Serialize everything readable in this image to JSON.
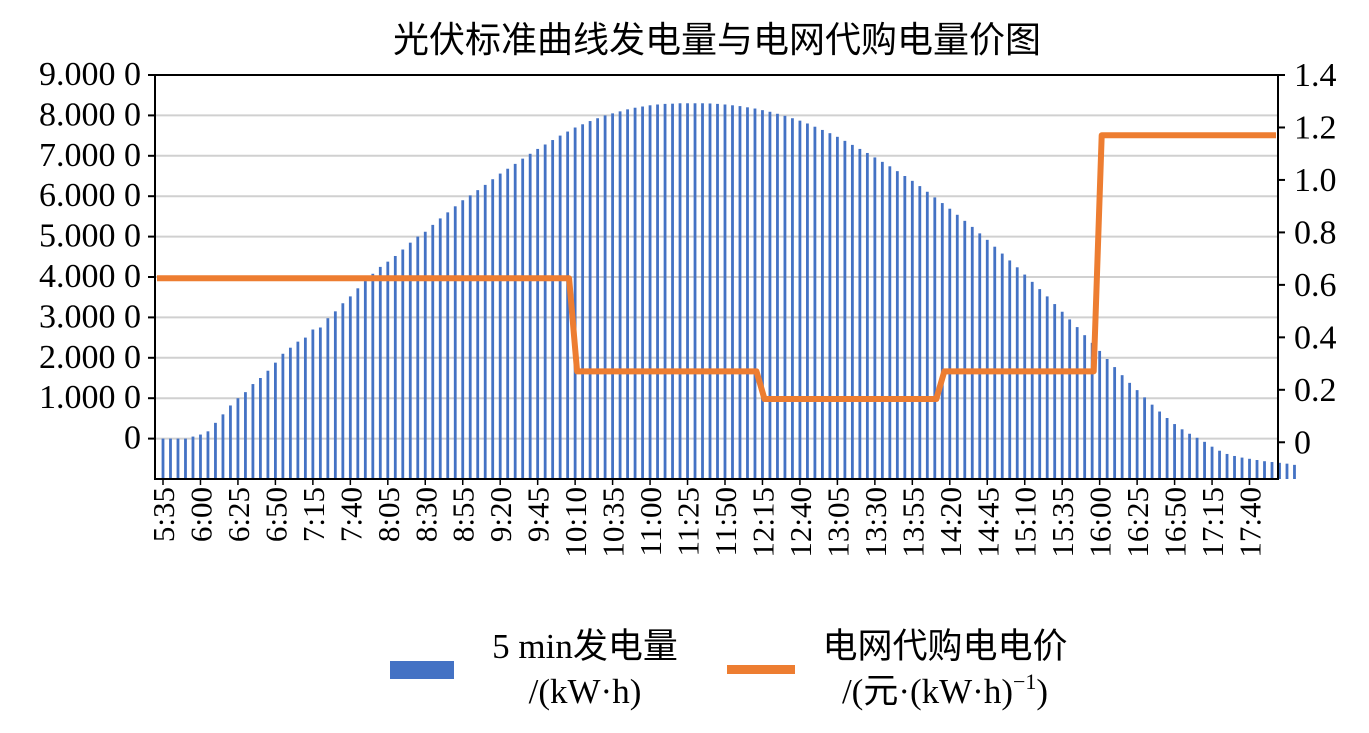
{
  "chart_data": {
    "type": "bar+line",
    "title": "光伏标准曲线发电量与电网代购电量价图",
    "y_left": {
      "min": -1000,
      "max": 9000,
      "tick_values": [
        0,
        1000,
        2000,
        3000,
        4000,
        5000,
        6000,
        7000,
        8000,
        9000
      ],
      "tick_labels": [
        "0",
        "1.000 0",
        "2.000 0",
        "3.000 0",
        "4.000 0",
        "5.000 0",
        "6.000 0",
        "7.000 0",
        "8.000 0",
        "9.000 0"
      ]
    },
    "y_right": {
      "min": -0.14,
      "max": 1.4,
      "tick_values": [
        0,
        0.2,
        0.4,
        0.6,
        0.8,
        1.0,
        1.2,
        1.4
      ],
      "tick_labels": [
        "0",
        "0.2",
        "0.4",
        "0.6",
        "0.8",
        "1.0",
        "1.2",
        "1.4"
      ]
    },
    "x_tick_labels": [
      "5:35",
      "6:00",
      "6:25",
      "6:50",
      "7:15",
      "7:40",
      "8:05",
      "8:30",
      "8:55",
      "9:20",
      "9:45",
      "10:10",
      "10:35",
      "11:00",
      "11:25",
      "11:50",
      "12:15",
      "12:40",
      "13:05",
      "13:30",
      "13:55",
      "14:20",
      "14:45",
      "15:10",
      "15:35",
      "16:00",
      "16:25",
      "16:50",
      "17:15",
      "17:40"
    ],
    "x_start": "5:35",
    "x_end": "17:55",
    "series": [
      {
        "name": "5 min发电量",
        "name_line2": "/(kW·h)",
        "type": "bar",
        "color": "#4472C4",
        "sampling_minutes": 5,
        "values": [
          0,
          0,
          0,
          0,
          50,
          100,
          180,
          390,
          600,
          820,
          1000,
          1150,
          1350,
          1500,
          1680,
          1880,
          2100,
          2250,
          2400,
          2500,
          2700,
          2750,
          2980,
          3150,
          3350,
          3520,
          3720,
          3900,
          4080,
          4250,
          4380,
          4520,
          4680,
          4850,
          5000,
          5120,
          5290,
          5450,
          5600,
          5750,
          5900,
          6020,
          6150,
          6280,
          6420,
          6560,
          6680,
          6800,
          6930,
          7050,
          7170,
          7280,
          7390,
          7500,
          7600,
          7700,
          7780,
          7860,
          7930,
          8000,
          8050,
          8100,
          8150,
          8190,
          8220,
          8250,
          8270,
          8285,
          8290,
          8300,
          8300,
          8300,
          8300,
          8295,
          8285,
          8270,
          8250,
          8230,
          8200,
          8170,
          8130,
          8090,
          8040,
          7990,
          7930,
          7870,
          7800,
          7720,
          7640,
          7560,
          7470,
          7370,
          7270,
          7170,
          7070,
          6960,
          6850,
          6740,
          6620,
          6500,
          6380,
          6250,
          6110,
          5970,
          5830,
          5690,
          5540,
          5390,
          5240,
          5080,
          4920,
          4750,
          4580,
          4410,
          4240,
          4060,
          3880,
          3700,
          3520,
          3330,
          3140,
          2950,
          2760,
          2560,
          2370,
          2170,
          1970,
          1770,
          1570,
          1380,
          1200,
          1020,
          840,
          670,
          510,
          360,
          230,
          120,
          20,
          -80,
          -200,
          -300,
          -380,
          -430,
          -470,
          -500,
          -530,
          -560,
          -580,
          -600,
          -620,
          -650
        ]
      },
      {
        "name": "电网代购电电价",
        "name_line2_prefix": "/(元·(kW·h)",
        "name_line2_sup": "−1",
        "name_line2_suffix": ")",
        "type": "line",
        "color": "#ED7D31",
        "steps": [
          {
            "from": "5:35",
            "value": 0.625
          },
          {
            "from": "10:10",
            "value": 0.27
          },
          {
            "from": "12:15",
            "value": 0.165
          },
          {
            "from": "14:15",
            "value": 0.27
          },
          {
            "from": "16:00",
            "value": 1.17
          }
        ]
      }
    ],
    "grid": true,
    "legend_position": "bottom"
  }
}
